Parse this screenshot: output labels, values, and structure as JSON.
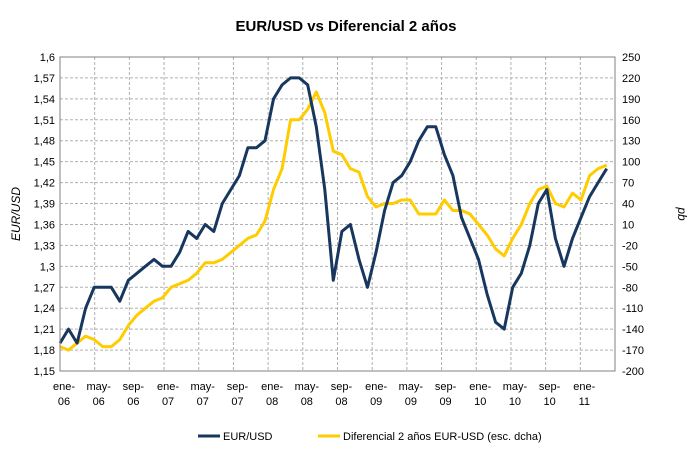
{
  "chart_data": {
    "type": "line",
    "title": "EUR/USD vs Diferencial 2 años",
    "ylabel": "EUR/USD",
    "ylabel_right": "pb",
    "ylim": [
      1.15,
      1.6
    ],
    "ylim_right": [
      -200,
      250
    ],
    "y_ticks": [
      "1,6",
      "1,57",
      "1,54",
      "1,51",
      "1,48",
      "1,45",
      "1,42",
      "1,39",
      "1,36",
      "1,33",
      "1,3",
      "1,27",
      "1,24",
      "1,21",
      "1,18",
      "1,15"
    ],
    "y_ticks_right": [
      "250",
      "220",
      "190",
      "160",
      "130",
      "100",
      "70",
      "40",
      "10",
      "-20",
      "-50",
      "-80",
      "-110",
      "-140",
      "-170",
      "-200"
    ],
    "x_ticks": [
      {
        "l1": "ene-",
        "l2": "06"
      },
      {
        "l1": "may-",
        "l2": "06"
      },
      {
        "l1": "sep-",
        "l2": "06"
      },
      {
        "l1": "ene-",
        "l2": "07"
      },
      {
        "l1": "may-",
        "l2": "07"
      },
      {
        "l1": "sep-",
        "l2": "07"
      },
      {
        "l1": "ene-",
        "l2": "08"
      },
      {
        "l1": "may-",
        "l2": "08"
      },
      {
        "l1": "sep-",
        "l2": "08"
      },
      {
        "l1": "ene-",
        "l2": "09"
      },
      {
        "l1": "may-",
        "l2": "09"
      },
      {
        "l1": "sep-",
        "l2": "09"
      },
      {
        "l1": "ene-",
        "l2": "10"
      },
      {
        "l1": "may-",
        "l2": "10"
      },
      {
        "l1": "sep-",
        "l2": "10"
      },
      {
        "l1": "ene-",
        "l2": "11"
      }
    ],
    "x": [
      0,
      0.25,
      0.5,
      0.75,
      1,
      1.25,
      1.5,
      1.75,
      2,
      2.25,
      2.5,
      2.75,
      3,
      3.25,
      3.5,
      3.75,
      4,
      4.25,
      4.5,
      4.75,
      5,
      5.25,
      5.5,
      5.75,
      6,
      6.25,
      6.5,
      6.75,
      7,
      7.25,
      7.5,
      7.75,
      8,
      8.25,
      8.5,
      8.75,
      9,
      9.25,
      9.5,
      9.75,
      10,
      10.25,
      10.5,
      10.75,
      11,
      11.25,
      11.5,
      11.75,
      12,
      12.25,
      12.5,
      12.75,
      13,
      13.25,
      13.5,
      13.75,
      14,
      14.25,
      14.5,
      14.75,
      15,
      15.25,
      15.5,
      15.75,
      16
    ],
    "series": [
      {
        "name": "EUR/USD",
        "color": "#17375e",
        "axis": "left",
        "values": [
          1.19,
          1.21,
          1.19,
          1.24,
          1.27,
          1.27,
          1.27,
          1.25,
          1.28,
          1.29,
          1.3,
          1.31,
          1.3,
          1.3,
          1.32,
          1.35,
          1.34,
          1.36,
          1.35,
          1.39,
          1.41,
          1.43,
          1.47,
          1.47,
          1.48,
          1.54,
          1.56,
          1.57,
          1.57,
          1.56,
          1.5,
          1.41,
          1.28,
          1.35,
          1.36,
          1.31,
          1.27,
          1.32,
          1.38,
          1.42,
          1.43,
          1.45,
          1.48,
          1.5,
          1.5,
          1.46,
          1.43,
          1.37,
          1.34,
          1.31,
          1.26,
          1.22,
          1.21,
          1.27,
          1.29,
          1.33,
          1.39,
          1.41,
          1.34,
          1.3,
          1.34,
          1.37,
          1.4,
          1.42,
          1.44
        ]
      },
      {
        "name": "Diferencial 2 años EUR-USD (esc. dcha)",
        "color": "#ffcc00",
        "axis": "right",
        "values": [
          -165,
          -170,
          -160,
          -150,
          -155,
          -165,
          -165,
          -155,
          -135,
          -120,
          -110,
          -100,
          -95,
          -80,
          -75,
          -70,
          -60,
          -45,
          -45,
          -40,
          -30,
          -20,
          -10,
          -5,
          15,
          60,
          90,
          160,
          160,
          175,
          200,
          170,
          115,
          110,
          90,
          85,
          50,
          35,
          40,
          40,
          45,
          45,
          25,
          25,
          25,
          45,
          30,
          30,
          25,
          10,
          -5,
          -25,
          -35,
          -10,
          10,
          40,
          60,
          65,
          40,
          35,
          55,
          45,
          80,
          90,
          95
        ]
      }
    ],
    "grid": true,
    "legend_position": "bottom"
  }
}
